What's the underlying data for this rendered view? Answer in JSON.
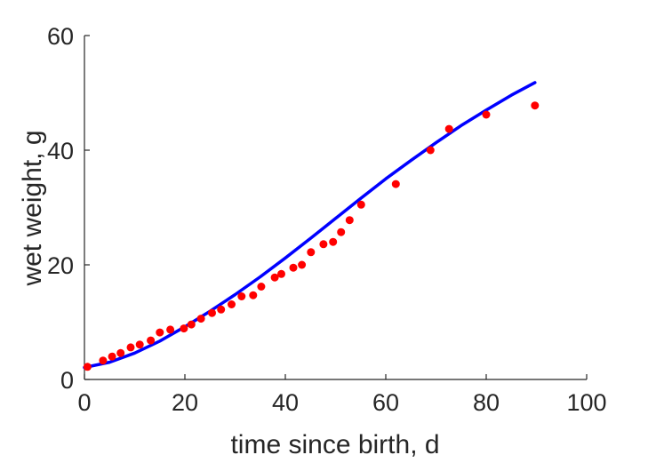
{
  "chart_data": {
    "type": "scatter",
    "title": "",
    "xlabel": "time since birth, d",
    "ylabel": "wet weight, g",
    "xlim": [
      0,
      100
    ],
    "ylim": [
      0,
      60
    ],
    "xticks": [
      "0",
      "20",
      "40",
      "60",
      "80",
      "100"
    ],
    "yticks": [
      "0",
      "20",
      "40",
      "60"
    ],
    "grid": false,
    "legend": "none",
    "series": [
      {
        "kind": "scatter",
        "color": "#ff0000",
        "x": [
          0.6,
          3.7,
          5.5,
          7.2,
          9.2,
          11.0,
          13.2,
          15.0,
          17.1,
          19.8,
          21.3,
          23.2,
          25.4,
          27.2,
          29.3,
          31.3,
          33.6,
          35.2,
          37.9,
          39.2,
          41.6,
          43.3,
          45.1,
          47.6,
          49.5,
          51.1,
          52.8,
          55.1,
          62.0,
          68.9,
          72.6,
          80.0,
          89.7
        ],
        "y": [
          2.2,
          3.3,
          4.0,
          4.6,
          5.6,
          6.1,
          6.8,
          8.2,
          8.7,
          8.9,
          9.6,
          10.6,
          11.6,
          12.2,
          13.1,
          14.5,
          14.7,
          16.2,
          17.8,
          18.4,
          19.5,
          20.0,
          22.2,
          23.6,
          24.0,
          25.7,
          27.8,
          30.5,
          34.1,
          40.0,
          43.7,
          46.2,
          47.8
        ]
      },
      {
        "kind": "line",
        "color": "#0000ff",
        "x": [
          0,
          5,
          10,
          15,
          20,
          25,
          30,
          35,
          40,
          45,
          50,
          55,
          60,
          65,
          70,
          75,
          80,
          85,
          89.7
        ],
        "y": [
          2.1,
          3.0,
          4.6,
          6.7,
          9.2,
          11.9,
          14.8,
          17.9,
          21.2,
          24.6,
          28.1,
          31.6,
          35.0,
          38.2,
          41.3,
          44.3,
          47.0,
          49.6,
          51.8
        ]
      }
    ]
  }
}
